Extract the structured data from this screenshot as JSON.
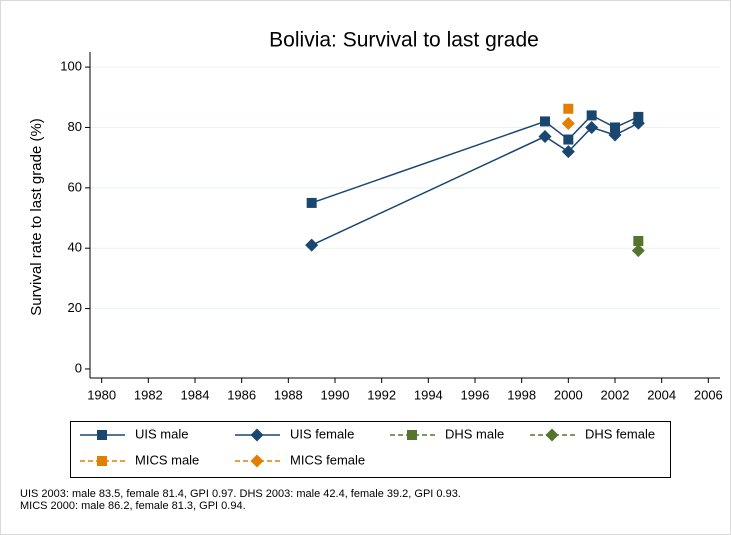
{
  "chart_data": {
    "type": "line",
    "title": "Bolivia: Survival to last grade",
    "y_label": "Survival rate to last grade (%)",
    "xlim": [
      1979.5,
      2006.5
    ],
    "xticks": [
      1980,
      1982,
      1984,
      1986,
      1988,
      1990,
      1992,
      1994,
      1996,
      1998,
      2000,
      2002,
      2004,
      2006
    ],
    "ylim": [
      -3,
      105
    ],
    "yticks": [
      0,
      20,
      40,
      60,
      80,
      100
    ],
    "grid": true,
    "series": [
      {
        "name": "UIS male",
        "color": "#1a476f",
        "marker": "square",
        "line": "solid",
        "x": [
          1989,
          1999,
          2000,
          2001,
          2002,
          2003
        ],
        "values": [
          55,
          82,
          76,
          84,
          80,
          83.5
        ]
      },
      {
        "name": "UIS female",
        "color": "#1a476f",
        "marker": "diamond",
        "line": "solid",
        "x": [
          1989,
          1999,
          2000,
          2001,
          2002,
          2003
        ],
        "values": [
          41,
          77,
          72,
          80,
          77.5,
          81.4
        ]
      },
      {
        "name": "DHS male",
        "color": "#55752f",
        "marker": "square",
        "line": "dashed",
        "x": [
          2003
        ],
        "values": [
          42.4
        ]
      },
      {
        "name": "DHS female",
        "color": "#55752f",
        "marker": "diamond",
        "line": "dashed",
        "x": [
          2003
        ],
        "values": [
          39.2
        ]
      },
      {
        "name": "MICS male",
        "color": "#e37e00",
        "marker": "square",
        "line": "dashed",
        "x": [
          2000
        ],
        "values": [
          86.2
        ]
      },
      {
        "name": "MICS female",
        "color": "#e37e00",
        "marker": "diamond",
        "line": "dashed",
        "x": [
          2000
        ],
        "values": [
          81.3
        ]
      }
    ],
    "notes": [
      "UIS 2003: male 83.5, female 81.4, GPI 0.97. DHS 2003: male 42.4, female 39.2, GPI 0.93.",
      "MICS 2000: male 86.2, female 81.3, GPI 0.94."
    ]
  }
}
